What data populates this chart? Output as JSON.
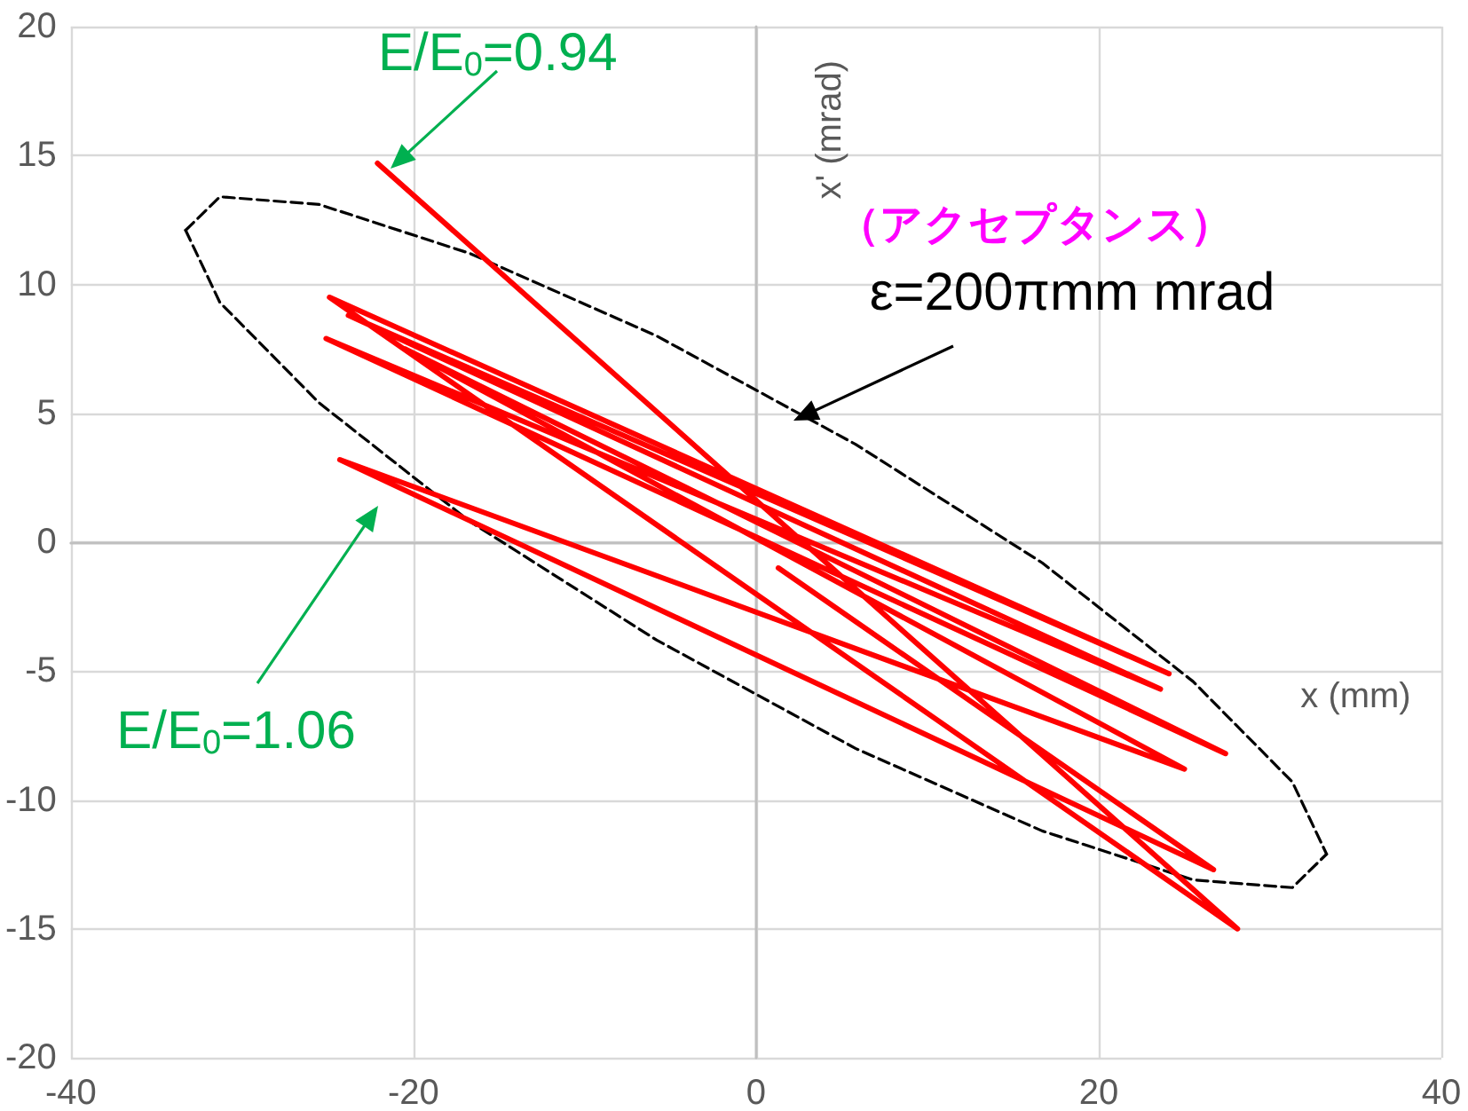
{
  "chart_data": {
    "type": "line",
    "xlabel": "x (mm)",
    "ylabel": "x' (mrad)",
    "xlim": [
      -40,
      40
    ],
    "xticks": [
      -40,
      -20,
      0,
      20,
      40
    ],
    "ylim": [
      -20,
      20
    ],
    "yticks": [
      -20,
      -15,
      -10,
      -5,
      0,
      5,
      10,
      15,
      20
    ],
    "grid": true,
    "marker": "none",
    "series": [
      {
        "color": "#ff0000",
        "line_style": "solid",
        "x": [
          -22.1,
          28.1,
          -24.9,
          24.1,
          -23.8,
          23.6,
          -25.1,
          27.4,
          -20.5,
          25.0,
          -24.3,
          26.7,
          1.3
        ],
        "values": [
          14.7,
          -15.0,
          9.5,
          -5.1,
          8.8,
          -5.7,
          7.9,
          -8.2,
          7.5,
          -8.8,
          3.2,
          -12.7,
          -1.0
        ]
      },
      {
        "color": "#000000",
        "line_style": "dashed",
        "x": [
          -33.3,
          -31.3,
          -25.5,
          -16.7,
          -5.8,
          5.8,
          16.7,
          25.5,
          31.3,
          33.3
        ],
        "values": [
          12.1,
          13.4,
          13.1,
          11.2,
          8.0,
          3.8,
          -0.8,
          -5.4,
          -9.3,
          -12.1
        ]
      },
      {
        "color": "#000000",
        "line_style": "dashed",
        "x": [
          -33.3,
          -31.3,
          -25.5,
          -16.7,
          -5.8,
          5.8,
          16.7,
          25.5,
          31.3,
          33.3
        ],
        "values": [
          12.1,
          9.3,
          5.4,
          0.8,
          -3.8,
          -8.0,
          -11.2,
          -13.1,
          -13.4,
          -12.1
        ]
      }
    ],
    "annotations": [
      {
        "text": "E/E$_{0}$=0.94",
        "x": -21.3,
        "y": 14.5
      },
      "E/E$_{0}$=1.06",
      "（アクセプタンス）",
      "ε=200πmm mrad"
    ]
  }
}
